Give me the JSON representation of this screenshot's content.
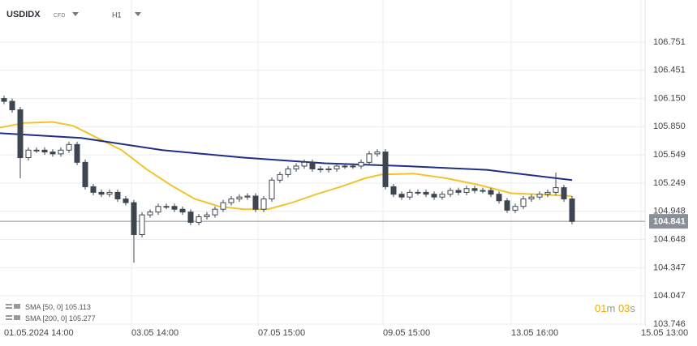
{
  "chart_data": {
    "type": "candlestick",
    "symbol": "USDIDX",
    "instrument": "CFD",
    "timeframe": "H1",
    "ylim": [
      103.73,
      107.2
    ],
    "yticks": [
      106.751,
      106.451,
      {
        "value": 106.15,
        "label": "106.150"
      },
      {
        "value": 105.85,
        "label": "105.850"
      },
      105.549,
      105.249,
      104.948,
      104.648,
      104.347,
      104.047,
      103.746
    ],
    "xlim": [
      -0.5,
      78.5
    ],
    "xticks": [
      {
        "value": 0,
        "label": "01.05.2024 14:00"
      },
      {
        "value": 15.7,
        "label": "03.05 14:00"
      },
      {
        "value": 31.3,
        "label": "07.05 15:00"
      },
      {
        "value": 46.7,
        "label": "09.05 15:00"
      },
      {
        "value": 62.5,
        "label": "13.05 16:00"
      },
      {
        "value": 78.5,
        "label": "15.05 13:00"
      }
    ],
    "grid": true,
    "up_color": "#ffffff",
    "down_color": "#3d4650",
    "open": [
      106.15,
      106.12,
      106.03,
      105.52,
      105.6,
      105.6,
      105.58,
      105.56,
      105.6,
      105.66,
      105.47,
      105.21,
      105.15,
      105.13,
      105.15,
      105.08,
      105.04,
      104.7,
      104.91,
      104.94,
      105.0,
      105.0,
      104.97,
      104.94,
      104.83,
      104.89,
      104.91,
      104.97,
      105.04,
      105.08,
      105.1,
      105.11,
      104.97,
      105.08,
      105.28,
      105.34,
      105.4,
      105.43,
      105.47,
      105.4,
      105.39,
      105.4,
      105.43,
      105.43,
      105.43,
      105.47,
      105.56,
      105.58,
      105.21,
      105.13,
      105.1,
      105.15,
      105.15,
      105.13,
      105.1,
      105.13,
      105.17,
      105.15,
      105.19,
      105.17,
      105.17,
      105.13,
      105.06,
      104.96,
      105.0,
      105.08,
      105.1,
      105.13,
      105.15,
      105.2,
      105.08
    ],
    "high": [
      106.18,
      106.15,
      106.06,
      105.63,
      105.63,
      105.63,
      105.61,
      105.63,
      105.69,
      105.69,
      105.5,
      105.24,
      105.18,
      105.18,
      105.18,
      105.11,
      105.07,
      104.94,
      104.97,
      105.03,
      105.03,
      105.03,
      105.0,
      104.97,
      104.92,
      104.94,
      105.0,
      105.07,
      105.11,
      105.13,
      105.14,
      105.14,
      105.11,
      105.31,
      105.37,
      105.43,
      105.46,
      105.5,
      105.5,
      105.43,
      105.43,
      105.46,
      105.46,
      105.46,
      105.5,
      105.59,
      105.61,
      105.61,
      105.24,
      105.16,
      105.18,
      105.18,
      105.18,
      105.16,
      105.16,
      105.2,
      105.2,
      105.22,
      105.22,
      105.2,
      105.2,
      105.16,
      105.09,
      105.03,
      105.11,
      105.13,
      105.16,
      105.18,
      105.36,
      105.23,
      105.11
    ],
    "low": [
      106.09,
      106.0,
      105.3,
      105.49,
      105.57,
      105.55,
      105.53,
      105.53,
      105.57,
      105.44,
      105.18,
      105.12,
      105.1,
      105.1,
      105.05,
      105.01,
      104.4,
      104.67,
      104.88,
      104.91,
      104.97,
      104.94,
      104.91,
      104.8,
      104.8,
      104.86,
      104.88,
      104.94,
      105.01,
      105.05,
      105.07,
      104.94,
      104.94,
      105.05,
      105.25,
      105.31,
      105.37,
      105.4,
      105.37,
      105.36,
      105.36,
      105.37,
      105.4,
      105.4,
      105.4,
      105.44,
      105.53,
      105.18,
      105.1,
      105.07,
      105.07,
      105.12,
      105.1,
      105.07,
      105.07,
      105.1,
      105.12,
      105.12,
      105.14,
      105.14,
      105.1,
      105.03,
      104.93,
      104.93,
      104.97,
      105.05,
      105.07,
      105.1,
      105.12,
      105.05,
      104.81
    ],
    "close": [
      106.12,
      106.03,
      105.52,
      105.6,
      105.6,
      105.58,
      105.56,
      105.6,
      105.66,
      105.47,
      105.21,
      105.15,
      105.13,
      105.15,
      105.08,
      105.04,
      104.7,
      104.91,
      104.94,
      105.0,
      105.0,
      104.97,
      104.94,
      104.83,
      104.89,
      104.91,
      104.97,
      105.04,
      105.08,
      105.1,
      105.11,
      104.97,
      105.08,
      105.28,
      105.34,
      105.4,
      105.43,
      105.47,
      105.4,
      105.39,
      105.4,
      105.43,
      105.43,
      105.43,
      105.47,
      105.56,
      105.58,
      105.21,
      105.13,
      105.1,
      105.15,
      105.15,
      105.13,
      105.1,
      105.13,
      105.17,
      105.15,
      105.19,
      105.17,
      105.17,
      105.13,
      105.06,
      104.96,
      105.0,
      105.08,
      105.1,
      105.13,
      105.15,
      105.2,
      105.08,
      104.84
    ],
    "series": [
      {
        "name": "SMA [50, 0]",
        "last_value": 105.113,
        "color": "#f2c42c",
        "x": [
          -0.5,
          2.5,
          6,
          8.5,
          11.5,
          14.5,
          17.5,
          20.5,
          23.5,
          26.5,
          29.5,
          32.5,
          35.5,
          38.5,
          41.5,
          44.5,
          46.5,
          50.5,
          54.5,
          58.5,
          62.5,
          65.5,
          70
        ],
        "values": [
          105.84,
          105.89,
          105.9,
          105.86,
          105.73,
          105.6,
          105.4,
          105.23,
          105.08,
          105.0,
          104.97,
          104.97,
          105.04,
          105.13,
          105.21,
          105.3,
          105.34,
          105.35,
          105.3,
          105.23,
          105.14,
          105.13,
          105.11
        ]
      },
      {
        "name": "SMA [200, 0]",
        "last_value": 105.277,
        "color": "#1f2f86",
        "x": [
          -0.5,
          9.5,
          19.5,
          29.5,
          39.5,
          49.5,
          59.5,
          70
        ],
        "values": [
          105.78,
          105.73,
          105.6,
          105.52,
          105.46,
          105.43,
          105.39,
          105.28
        ]
      }
    ],
    "last_price": 104.841,
    "timer": {
      "minutes": "01",
      "minutes_unit": "m",
      "seconds": "03",
      "seconds_unit": "s"
    }
  }
}
